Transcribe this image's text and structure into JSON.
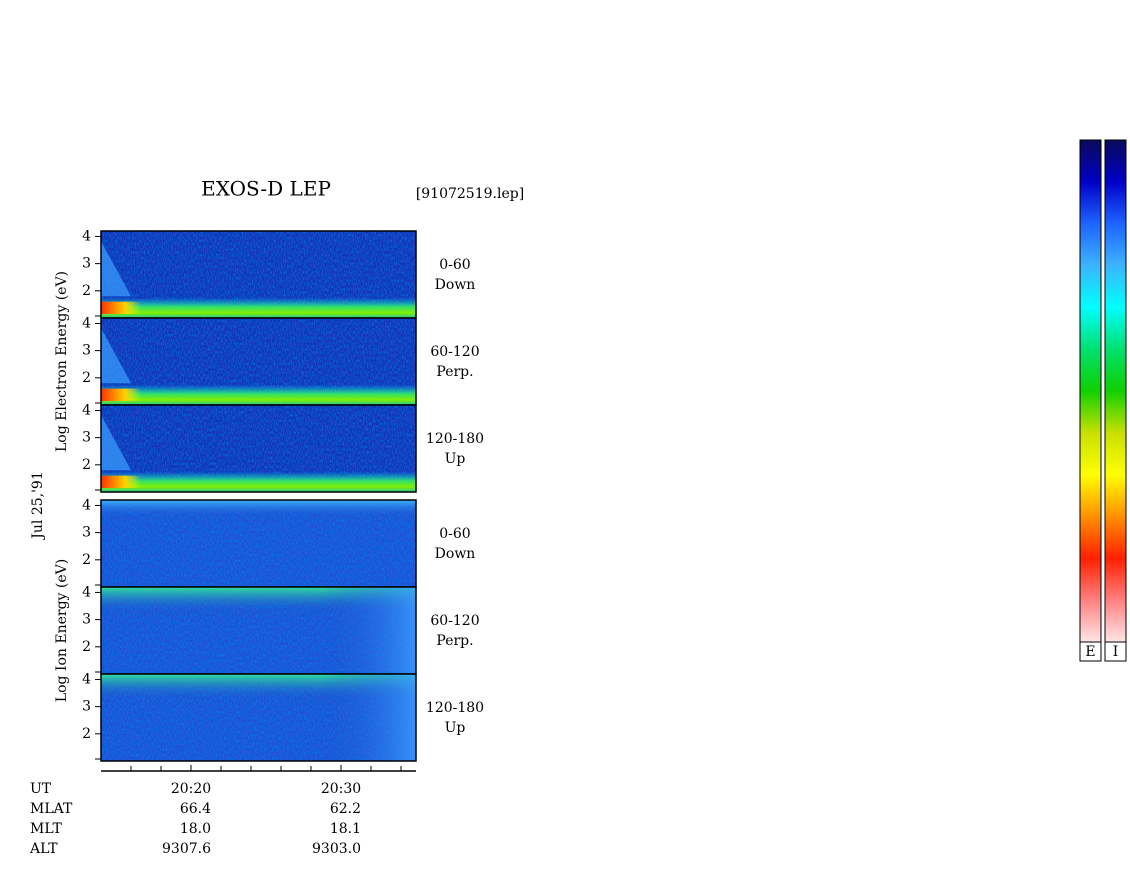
{
  "chart_data": {
    "type": "spectrogram",
    "title": "EXOS-D LEP",
    "file_label": "[91072519.lep]",
    "date_label": "Jul 25,'91",
    "ylim": [
      1,
      4.2
    ],
    "yticks": [
      2,
      3,
      4
    ],
    "xlim": [
      854,
      875
    ],
    "xticks": [
      {
        "value": 860,
        "label": "20:20"
      },
      {
        "value": 870,
        "label": "20:30"
      }
    ],
    "minor_xticks": [
      856,
      858,
      862,
      864,
      866,
      868,
      872,
      874
    ],
    "groups": [
      {
        "ylabel": "Log  Electron  Energy (eV)",
        "species": "electron",
        "panels": [
          {
            "pitch": "0-60",
            "direction": "Down"
          },
          {
            "pitch": "60-120",
            "direction": "Perp."
          },
          {
            "pitch": "120-180",
            "direction": "Up"
          }
        ]
      },
      {
        "ylabel": "Log  Ion  Energy (eV)",
        "species": "ion",
        "panels": [
          {
            "pitch": "0-60",
            "direction": "Down"
          },
          {
            "pitch": "60-120",
            "direction": "Perp."
          },
          {
            "pitch": "120-180",
            "direction": "Up"
          }
        ]
      }
    ],
    "info_rows": [
      {
        "label": "UT",
        "values": []
      },
      {
        "label": "MLAT",
        "values": [
          "66.4",
          "62.2"
        ]
      },
      {
        "label": "MLT",
        "values": [
          "18.0",
          "18.1"
        ]
      },
      {
        "label": "ALT",
        "values": [
          "9307.6",
          "9303.0"
        ]
      }
    ],
    "colorbar": {
      "labels": [
        "E",
        "I"
      ],
      "colors": [
        "#0a0a5a",
        "#0000c8",
        "#1e64ff",
        "#3cb4ff",
        "#00ffff",
        "#00e070",
        "#10d000",
        "#c8e000",
        "#ffff00",
        "#ff9000",
        "#ff2000",
        "#ff8080",
        "#ffe6e6"
      ]
    }
  }
}
